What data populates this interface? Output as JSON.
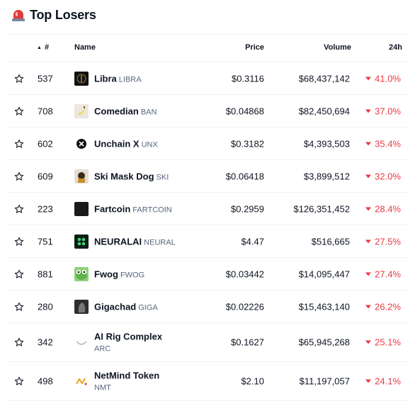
{
  "header": {
    "title": "Top Losers",
    "icon": "siren-icon"
  },
  "table": {
    "columns": {
      "rank": "#",
      "name": "Name",
      "price": "Price",
      "volume": "Volume",
      "change": "24h"
    },
    "rows": [
      {
        "rank": "537",
        "name": "Libra",
        "symbol": "LIBRA",
        "price": "$0.3116",
        "volume": "$68,437,142",
        "change": "41.0%",
        "logo": "libra-logo",
        "logo_bg": "#111111"
      },
      {
        "rank": "708",
        "name": "Comedian",
        "symbol": "BAN",
        "price": "$0.04868",
        "volume": "$82,450,694",
        "change": "37.0%",
        "logo": "banana-logo",
        "logo_bg": "#e9e4d8"
      },
      {
        "rank": "602",
        "name": "Unchain X",
        "symbol": "UNX",
        "price": "$0.3182",
        "volume": "$4,393,503",
        "change": "35.4%",
        "logo": "unchain-x-logo",
        "logo_bg": "#ffffff"
      },
      {
        "rank": "609",
        "name": "Ski Mask Dog",
        "symbol": "SKI",
        "price": "$0.06418",
        "volume": "$3,899,512",
        "change": "32.0%",
        "logo": "ski-mask-dog-logo",
        "logo_bg": "#d9d2c4"
      },
      {
        "rank": "223",
        "name": "Fartcoin",
        "symbol": "FARTCOIN",
        "price": "$0.2959",
        "volume": "$126,351,452",
        "change": "28.4%",
        "logo": "fartcoin-logo",
        "logo_bg": "#1a1a1a"
      },
      {
        "rank": "751",
        "name": "NEURALAI",
        "symbol": "NEURAL",
        "price": "$4.47",
        "volume": "$516,665",
        "change": "27.5%",
        "logo": "neuralai-logo",
        "logo_bg": "#0b1f14"
      },
      {
        "rank": "881",
        "name": "Fwog",
        "symbol": "FWOG",
        "price": "$0.03442",
        "volume": "$14,095,447",
        "change": "27.4%",
        "logo": "fwog-logo",
        "logo_bg": "#8fd17a"
      },
      {
        "rank": "280",
        "name": "Gigachad",
        "symbol": "GIGA",
        "price": "$0.02226",
        "volume": "$15,463,140",
        "change": "26.2%",
        "logo": "gigachad-logo",
        "logo_bg": "#3a3a3a"
      },
      {
        "rank": "342",
        "name": "AI Rig Complex",
        "symbol": "ARC",
        "price": "$0.1627",
        "volume": "$65,945,268",
        "change": "25.1%",
        "logo": "arc-logo",
        "logo_bg": "#ffffff"
      },
      {
        "rank": "498",
        "name": "NetMind Token",
        "symbol": "NMT",
        "price": "$2.10",
        "volume": "$11,197,057",
        "change": "24.1%",
        "logo": "netmind-logo",
        "logo_bg": "#ffffff"
      }
    ]
  },
  "colors": {
    "negative": "#ea3943",
    "muted": "#58667e",
    "divider": "#eff2f5"
  }
}
